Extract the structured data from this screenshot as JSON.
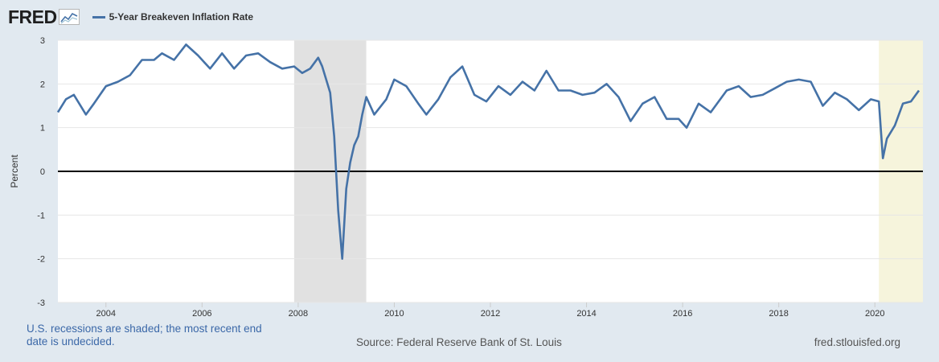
{
  "logo_text": "FRED",
  "chart_data": {
    "type": "line",
    "title": "",
    "ylabel": "Percent",
    "xlabel": "",
    "series": [
      {
        "name": "5-Year Breakeven Inflation Rate",
        "color": "#4572a7",
        "points": [
          [
            "2003-01",
            1.35
          ],
          [
            "2003-03",
            1.65
          ],
          [
            "2003-05",
            1.75
          ],
          [
            "2003-08",
            1.3
          ],
          [
            "2003-10",
            1.55
          ],
          [
            "2004-01",
            1.95
          ],
          [
            "2004-04",
            2.05
          ],
          [
            "2004-07",
            2.2
          ],
          [
            "2004-10",
            2.55
          ],
          [
            "2005-01",
            2.55
          ],
          [
            "2005-03",
            2.7
          ],
          [
            "2005-06",
            2.55
          ],
          [
            "2005-09",
            2.9
          ],
          [
            "2005-12",
            2.65
          ],
          [
            "2006-03",
            2.35
          ],
          [
            "2006-06",
            2.7
          ],
          [
            "2006-09",
            2.35
          ],
          [
            "2006-12",
            2.65
          ],
          [
            "2007-03",
            2.7
          ],
          [
            "2007-06",
            2.5
          ],
          [
            "2007-09",
            2.35
          ],
          [
            "2007-12",
            2.4
          ],
          [
            "2008-02",
            2.25
          ],
          [
            "2008-04",
            2.35
          ],
          [
            "2008-06",
            2.6
          ],
          [
            "2008-07",
            2.4
          ],
          [
            "2008-09",
            1.8
          ],
          [
            "2008-10",
            0.8
          ],
          [
            "2008-11",
            -0.9
          ],
          [
            "2008-12",
            -2.0
          ],
          [
            "2009-01",
            -0.4
          ],
          [
            "2009-02",
            0.2
          ],
          [
            "2009-03",
            0.6
          ],
          [
            "2009-04",
            0.8
          ],
          [
            "2009-05",
            1.3
          ],
          [
            "2009-06",
            1.7
          ],
          [
            "2009-08",
            1.3
          ],
          [
            "2009-11",
            1.65
          ],
          [
            "2010-01",
            2.1
          ],
          [
            "2010-04",
            1.95
          ],
          [
            "2010-07",
            1.55
          ],
          [
            "2010-09",
            1.3
          ],
          [
            "2010-12",
            1.65
          ],
          [
            "2011-03",
            2.15
          ],
          [
            "2011-06",
            2.4
          ],
          [
            "2011-09",
            1.75
          ],
          [
            "2011-12",
            1.6
          ],
          [
            "2012-03",
            1.95
          ],
          [
            "2012-06",
            1.75
          ],
          [
            "2012-09",
            2.05
          ],
          [
            "2012-12",
            1.85
          ],
          [
            "2013-03",
            2.3
          ],
          [
            "2013-06",
            1.85
          ],
          [
            "2013-09",
            1.85
          ],
          [
            "2013-12",
            1.75
          ],
          [
            "2014-03",
            1.8
          ],
          [
            "2014-06",
            2.0
          ],
          [
            "2014-09",
            1.7
          ],
          [
            "2014-12",
            1.15
          ],
          [
            "2015-03",
            1.55
          ],
          [
            "2015-06",
            1.7
          ],
          [
            "2015-09",
            1.2
          ],
          [
            "2015-12",
            1.2
          ],
          [
            "2016-02",
            1.0
          ],
          [
            "2016-05",
            1.55
          ],
          [
            "2016-08",
            1.35
          ],
          [
            "2016-12",
            1.85
          ],
          [
            "2017-03",
            1.95
          ],
          [
            "2017-06",
            1.7
          ],
          [
            "2017-09",
            1.75
          ],
          [
            "2017-12",
            1.9
          ],
          [
            "2018-03",
            2.05
          ],
          [
            "2018-06",
            2.1
          ],
          [
            "2018-09",
            2.05
          ],
          [
            "2018-12",
            1.5
          ],
          [
            "2019-03",
            1.8
          ],
          [
            "2019-06",
            1.65
          ],
          [
            "2019-09",
            1.4
          ],
          [
            "2019-12",
            1.65
          ],
          [
            "2020-02",
            1.6
          ],
          [
            "2020-03",
            0.3
          ],
          [
            "2020-04",
            0.75
          ],
          [
            "2020-06",
            1.05
          ],
          [
            "2020-08",
            1.55
          ],
          [
            "2020-10",
            1.6
          ],
          [
            "2020-12",
            1.85
          ]
        ]
      }
    ],
    "x_ticks": [
      "2004",
      "2006",
      "2008",
      "2010",
      "2012",
      "2014",
      "2016",
      "2018",
      "2020"
    ],
    "y_ticks": [
      "3",
      "2",
      "1",
      "0",
      "-1",
      "-2",
      "-3"
    ],
    "xlim": [
      "2003-01",
      "2021-01"
    ],
    "ylim": [
      -3,
      3
    ],
    "zero_line": true,
    "recessions": [
      {
        "start": "2007-12",
        "end": "2009-06",
        "color": "#e1e1e1"
      },
      {
        "start": "2020-02",
        "end": "2021-01",
        "color": "#f6f4dc"
      }
    ],
    "legend_position": "top-left"
  },
  "footer": {
    "note": "U.S. recessions are shaded; the most recent end date is undecided.",
    "source": "Source: Federal Reserve Bank of St. Louis",
    "url": "fred.stlouisfed.org"
  }
}
